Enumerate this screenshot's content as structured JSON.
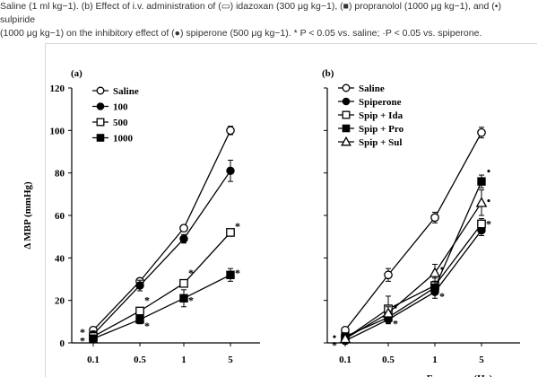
{
  "caption": "Saline (1 ml kg−1). (b) Effect of i.v. administration of (▭) idazoxan (300 μg kg−1), (■) propranolol (1000 μg kg−1), and (•) sulpiride\n(1000 μg kg−1) on the inhibitory effect of (●) spiperone (500 μg kg−1). * P < 0.05 vs. saline; ·P < 0.05 vs. spiperone.",
  "chart_data": [
    {
      "panel": "(a)",
      "type": "line",
      "ylabel": "Δ MBP (mmHg)",
      "xlabel": "",
      "ylim": [
        0,
        120
      ],
      "y_ticks": [
        0,
        20,
        40,
        60,
        80,
        100,
        120
      ],
      "categories": [
        "0.1",
        "0.5",
        "1",
        "5"
      ],
      "legend_position": "top-left",
      "series": [
        {
          "name": "Saline",
          "marker": "open-circle",
          "values": [
            6,
            29,
            54,
            100
          ],
          "errors": [
            1.5,
            1.5,
            1.5,
            2
          ]
        },
        {
          "name": "100",
          "marker": "filled-circle",
          "values": [
            4,
            27,
            49,
            81
          ],
          "errors": [
            1.5,
            2.5,
            2,
            5
          ]
        },
        {
          "name": "500",
          "marker": "open-square",
          "values": [
            3,
            15,
            28,
            52
          ],
          "errors": [
            1.5,
            1.5,
            1.5,
            1.5
          ]
        },
        {
          "name": "1000",
          "marker": "filled-square",
          "values": [
            2,
            11,
            21,
            32
          ],
          "errors": [
            1,
            2,
            4,
            3
          ]
        }
      ],
      "annotations": [
        {
          "text": "*",
          "x": "0.1",
          "y": 5
        },
        {
          "text": "*",
          "x": "0.1",
          "y": 1
        },
        {
          "text": "*",
          "x": "0.5",
          "y": 20
        },
        {
          "text": "*",
          "x": "0.5",
          "y": 8
        },
        {
          "text": "*",
          "x": "1",
          "y": 33
        },
        {
          "text": "*",
          "x": "1",
          "y": 20
        },
        {
          "text": "*",
          "x": "5",
          "y": 55
        },
        {
          "text": "*",
          "x": "5",
          "y": 33
        }
      ]
    },
    {
      "panel": "(b)",
      "type": "line",
      "ylabel": "",
      "xlabel": "Frequency (Hz)",
      "ylim": [
        0,
        120
      ],
      "categories": [
        "0.1",
        "0.5",
        "1",
        "5"
      ],
      "legend_position": "top-left",
      "series": [
        {
          "name": "Saline",
          "marker": "open-circle",
          "values": [
            6,
            32,
            59,
            99
          ],
          "errors": [
            1.5,
            3,
            2.5,
            2.5
          ]
        },
        {
          "name": "Spiperone",
          "marker": "filled-circle",
          "values": [
            1,
            11,
            24,
            53
          ],
          "errors": [
            1.5,
            2,
            3,
            2.5
          ]
        },
        {
          "name": "Spip + Ida",
          "marker": "open-square",
          "values": [
            2,
            16,
            27,
            56
          ],
          "errors": [
            1.5,
            6,
            3.5,
            2.5
          ]
        },
        {
          "name": "Spip + Pro",
          "marker": "filled-square",
          "values": [
            3,
            12,
            26,
            76
          ],
          "errors": [
            1.5,
            2,
            3,
            3
          ]
        },
        {
          "name": "Spip + Sul",
          "marker": "open-triangle",
          "values": [
            2,
            14,
            33,
            66
          ],
          "errors": [
            1.5,
            3,
            4,
            6
          ]
        }
      ],
      "annotations": [
        {
          "text": "•",
          "x": "0.1",
          "y": 3
        },
        {
          "text": "*",
          "x": "0.1",
          "y": -1
        },
        {
          "text": "•",
          "x": "0.5",
          "y": 17
        },
        {
          "text": "*",
          "x": "0.5",
          "y": 9
        },
        {
          "text": "•",
          "x": "1",
          "y": 35
        },
        {
          "text": "*",
          "x": "1",
          "y": 22
        },
        {
          "text": "•",
          "x": "5",
          "y": 81
        },
        {
          "text": "•",
          "x": "5",
          "y": 67
        },
        {
          "text": "*",
          "x": "5",
          "y": 56
        }
      ]
    }
  ]
}
